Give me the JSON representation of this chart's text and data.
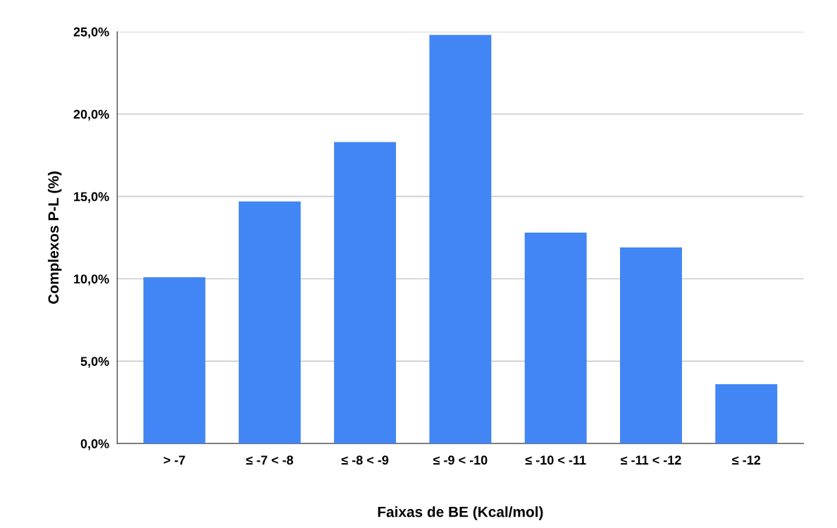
{
  "chart_data": {
    "type": "bar",
    "categories": [
      "> -7",
      "≤ -7 < -8",
      "≤ -8 < -9",
      "≤ -9 < -10",
      "≤ -10 < -11",
      "≤ -11 < -12",
      "≤ -12"
    ],
    "values": [
      10.1,
      14.7,
      18.3,
      24.8,
      12.8,
      11.9,
      3.6
    ],
    "color": "#4285f4",
    "xlabel": "Faixas de BE (Kcal/mol)",
    "ylabel": "Complexos P-L (%)",
    "ylim": [
      0,
      25
    ],
    "yticks": [
      {
        "value": 0,
        "label": "0,0%"
      },
      {
        "value": 5,
        "label": "5,0%"
      },
      {
        "value": 10,
        "label": "10,0%"
      },
      {
        "value": 15,
        "label": "15,0%"
      },
      {
        "value": 20,
        "label": "20,0%"
      },
      {
        "value": 25,
        "label": "25,0%"
      }
    ],
    "grid": "y"
  }
}
